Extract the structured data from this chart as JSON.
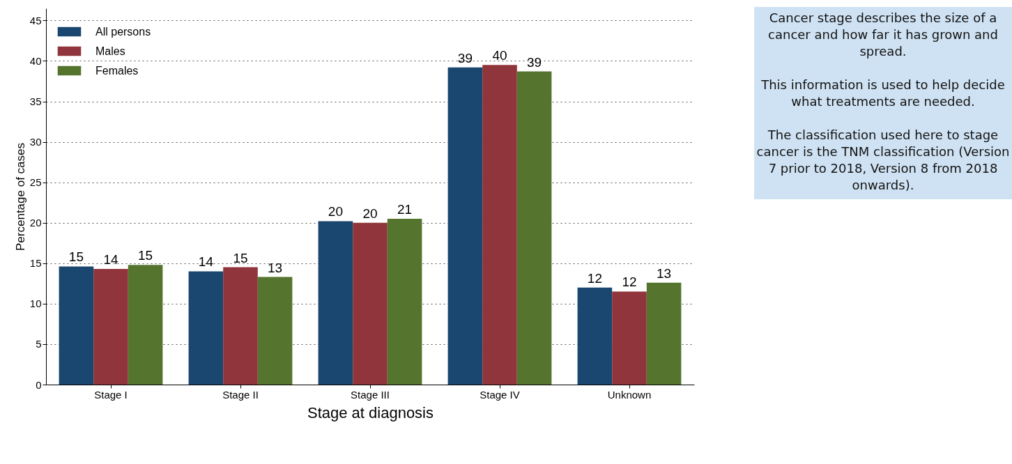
{
  "chart_data": {
    "type": "bar",
    "xlabel": "Stage at diagnosis",
    "ylabel": "Percentage of cases",
    "categories": [
      "Stage I",
      "Stage II",
      "Stage III",
      "Stage IV",
      "Unknown"
    ],
    "series": [
      {
        "name": "All persons",
        "color": "#1a476f",
        "values": [
          14.6,
          14.0,
          20.2,
          39.2,
          12.0
        ],
        "value_labels": [
          "15",
          "14",
          "20",
          "39",
          "12"
        ]
      },
      {
        "name": "Males",
        "color": "#90353b",
        "values": [
          14.3,
          14.5,
          20.0,
          39.5,
          11.5
        ],
        "value_labels": [
          "14",
          "15",
          "20",
          "40",
          "12"
        ]
      },
      {
        "name": "Females",
        "color": "#55752f",
        "values": [
          14.8,
          13.3,
          20.5,
          38.7,
          12.6
        ],
        "value_labels": [
          "15",
          "13",
          "21",
          "39",
          "13"
        ]
      }
    ],
    "ylim": [
      0,
      46.5
    ],
    "yticks": [
      0,
      5,
      10,
      15,
      20,
      25,
      30,
      35,
      40,
      45
    ],
    "grid": "y",
    "legend": "top left",
    "annotations": [
      "Cancer stage describes the size of a cancer and how far it has grown and spread.",
      "This information is used to help decide what treatments are needed.",
      "The classification used here to stage cancer is the TNM classification (Version 7 prior to 2018, Version 8 from 2018 onwards)."
    ]
  }
}
